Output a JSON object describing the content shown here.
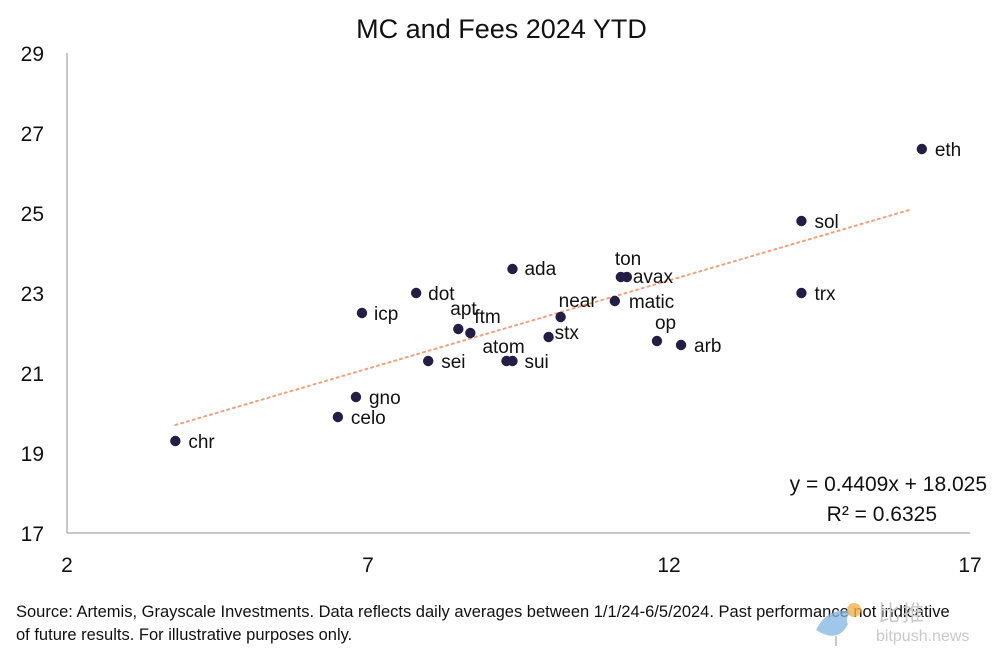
{
  "chart_data": {
    "type": "scatter",
    "title": "MC and Fees 2024 YTD",
    "xlabel": "",
    "ylabel": "",
    "xlim": [
      2,
      17
    ],
    "ylim": [
      17,
      29
    ],
    "xticks": [
      2,
      7,
      12,
      17
    ],
    "yticks": [
      17,
      19,
      21,
      23,
      25,
      27,
      29
    ],
    "points": [
      {
        "label": "eth",
        "x": 16.2,
        "y": 26.6
      },
      {
        "label": "sol",
        "x": 14.2,
        "y": 24.8
      },
      {
        "label": "trx",
        "x": 14.2,
        "y": 23.0
      },
      {
        "label": "ton",
        "x": 11.2,
        "y": 23.4
      },
      {
        "label": "avax",
        "x": 11.3,
        "y": 23.4
      },
      {
        "label": "ada",
        "x": 9.4,
        "y": 23.6
      },
      {
        "label": "dot",
        "x": 7.8,
        "y": 23.0
      },
      {
        "label": "icp",
        "x": 6.9,
        "y": 22.5
      },
      {
        "label": "near",
        "x": 10.2,
        "y": 22.4
      },
      {
        "label": "matic",
        "x": 11.1,
        "y": 22.8
      },
      {
        "label": "apt",
        "x": 8.5,
        "y": 22.1
      },
      {
        "label": "ftm",
        "x": 8.7,
        "y": 22.0
      },
      {
        "label": "stx",
        "x": 10.0,
        "y": 21.9
      },
      {
        "label": "op",
        "x": 11.8,
        "y": 21.8
      },
      {
        "label": "arb",
        "x": 12.2,
        "y": 21.7
      },
      {
        "label": "atom",
        "x": 9.3,
        "y": 21.3
      },
      {
        "label": "sui",
        "x": 9.4,
        "y": 21.3
      },
      {
        "label": "sei",
        "x": 8.0,
        "y": 21.3
      },
      {
        "label": "gno",
        "x": 6.8,
        "y": 20.4
      },
      {
        "label": "celo",
        "x": 6.5,
        "y": 19.9
      },
      {
        "label": "chr",
        "x": 3.8,
        "y": 19.3
      }
    ],
    "trendline": {
      "slope": 0.4409,
      "intercept": 18.025,
      "x_range": [
        3.8,
        16.0
      ],
      "equation": "y = 0.4409x + 18.025",
      "r2": "R² = 0.6325"
    },
    "grid": false,
    "colors": {
      "point": "#231e46",
      "trendline": "#f0a07c",
      "axis": "#b5b5b5"
    }
  },
  "source_note": "Source: Artemis, Grayscale Investments. Data reflects daily averages between 1/1/24-6/5/2024. Past performance not indicative of future results. For illustrative purposes only.",
  "watermark": {
    "cn": "比推",
    "en": "bitpush.news"
  }
}
